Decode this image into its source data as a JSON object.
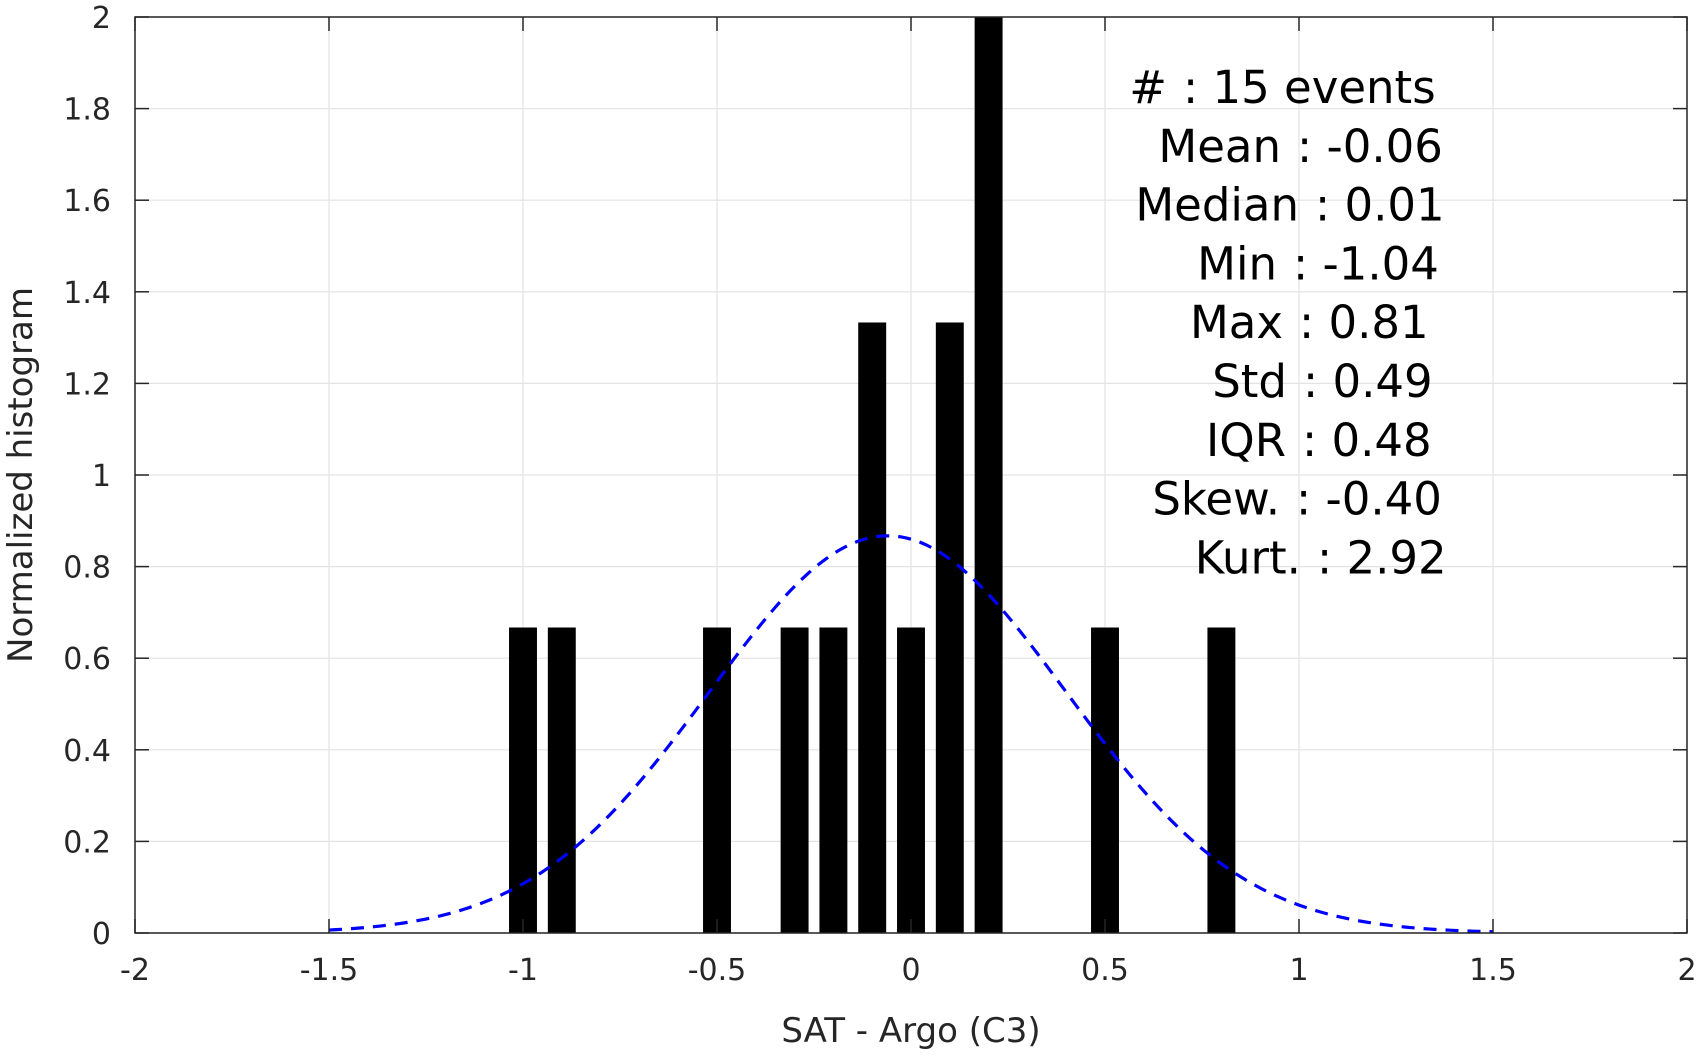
{
  "chart_data": {
    "type": "bar",
    "xlabel": "SAT - Argo (C3)",
    "ylabel": "Normalized histogram",
    "xlim": [
      -2,
      2
    ],
    "ylim": [
      0,
      2
    ],
    "grid": true,
    "x_ticks": [
      "-2",
      "-1.5",
      "-1",
      "-0.5",
      "0",
      "0.5",
      "1",
      "1.5",
      "2"
    ],
    "y_ticks": [
      "0",
      "0.2",
      "0.4",
      "0.6",
      "0.8",
      "1",
      "1.2",
      "1.4",
      "1.6",
      "1.8",
      "2"
    ],
    "bin_width": 0.1,
    "bars": [
      {
        "x": -1.0,
        "y": 0.667
      },
      {
        "x": -0.9,
        "y": 0.667
      },
      {
        "x": -0.5,
        "y": 0.667
      },
      {
        "x": -0.3,
        "y": 0.667
      },
      {
        "x": -0.2,
        "y": 0.667
      },
      {
        "x": -0.1,
        "y": 1.333
      },
      {
        "x": 0.0,
        "y": 0.667
      },
      {
        "x": 0.1,
        "y": 1.333
      },
      {
        "x": 0.2,
        "y": 2.0
      },
      {
        "x": 0.5,
        "y": 0.667
      },
      {
        "x": 0.8,
        "y": 0.667
      }
    ],
    "bar_color": "#000000",
    "fit_curve": {
      "kind": "normal",
      "mean": -0.06,
      "std": 0.46,
      "x_range": [
        -1.5,
        1.5
      ],
      "color": "#0000ff",
      "style": "dashed"
    },
    "annotations": [
      {
        "label": "#  ",
        "value": ": 15 events"
      },
      {
        "label": "Mean",
        "value": ": -0.06"
      },
      {
        "label": "Median",
        "value": ": 0.01"
      },
      {
        "label": "Min",
        "value": ": -1.04"
      },
      {
        "label": "Max",
        "value": ": 0.81"
      },
      {
        "label": "Std",
        "value": ": 0.49"
      },
      {
        "label": "IQR",
        "value": ": 0.48"
      },
      {
        "label": "Skew.",
        "value": ": -0.40"
      },
      {
        "label": "Kurt.",
        "value": ": 2.92"
      }
    ]
  }
}
